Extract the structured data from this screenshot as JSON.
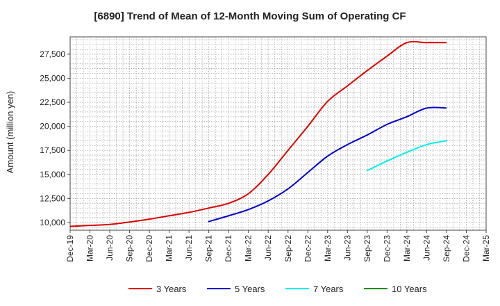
{
  "chart_data": {
    "type": "line",
    "title": "[6890]  Trend of Mean of 12-Month Moving Sum of Operating CF",
    "xlabel": "",
    "ylabel": "Amount (million yen)",
    "ylim": [
      9200,
      29300
    ],
    "y_ticks": [
      10000,
      12500,
      15000,
      17500,
      20000,
      22500,
      25000,
      27500
    ],
    "y_tick_labels": [
      "10,000",
      "12,500",
      "15,000",
      "17,500",
      "20,000",
      "22,500",
      "25,000",
      "27,500"
    ],
    "x_tick_labels": [
      "Dec-19",
      "Mar-20",
      "Jun-20",
      "Sep-20",
      "Dec-20",
      "Mar-21",
      "Jun-21",
      "Sep-21",
      "Dec-21",
      "Mar-22",
      "Jun-22",
      "Sep-22",
      "Dec-22",
      "Mar-23",
      "Jun-23",
      "Sep-23",
      "Dec-23",
      "Mar-24",
      "Jun-24",
      "Sep-24",
      "Dec-24",
      "Mar-25"
    ],
    "x_range_months": [
      0,
      63
    ],
    "grid": true,
    "legend_position": "bottom",
    "series": [
      {
        "name": "3 Years",
        "color": "#dd0000",
        "x": [
          0,
          3,
          6,
          9,
          12,
          15,
          18,
          21,
          24,
          27,
          30,
          33,
          36,
          39,
          42,
          45,
          48,
          51,
          54,
          57
        ],
        "values": [
          9600,
          9700,
          9800,
          10050,
          10350,
          10700,
          11050,
          11500,
          12000,
          13000,
          15000,
          17500,
          20000,
          22600,
          24200,
          25800,
          27300,
          28700,
          28700,
          28700
        ],
        "mask_from": 57
      },
      {
        "name": "5 Years",
        "color": "#0000cc",
        "x": [
          21,
          24,
          27,
          30,
          33,
          36,
          39,
          42,
          45,
          48,
          51,
          54,
          57
        ],
        "values": [
          10100,
          10700,
          11350,
          12250,
          13500,
          15200,
          16900,
          18100,
          19100,
          20200,
          21000,
          21900,
          21900
        ],
        "mask_from": 57
      },
      {
        "name": "7 Years",
        "color": "#00eeee",
        "x": [
          45,
          48,
          51,
          54,
          57
        ],
        "values": [
          15400,
          16400,
          17300,
          18100,
          18500
        ]
      },
      {
        "name": "10 Years",
        "color": "#228b22",
        "x": [],
        "values": []
      }
    ]
  }
}
